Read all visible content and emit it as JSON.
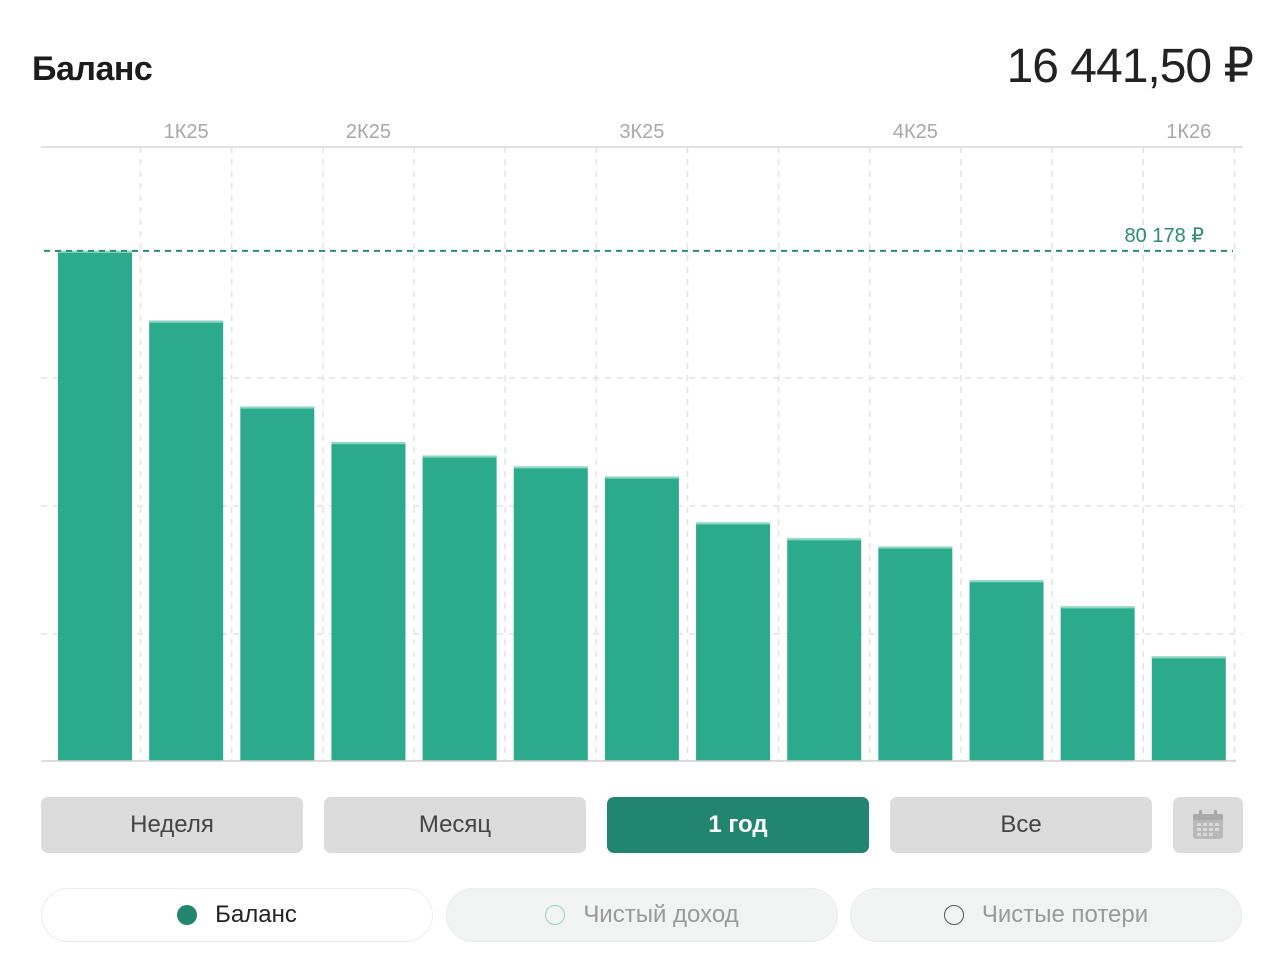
{
  "header": {
    "title": "Баланс",
    "total": "16 441,50 ₽"
  },
  "chart_data": {
    "type": "bar",
    "categories": [
      "",
      "",
      "",
      "",
      "",
      "",
      "",
      "",
      "",
      "",
      "",
      "",
      ""
    ],
    "values": [
      80178,
      69200,
      55700,
      50100,
      48000,
      46300,
      44700,
      37500,
      35000,
      33700,
      28400,
      24300,
      16441.5
    ],
    "x_tick_labels": [
      {
        "label": "1К25",
        "bar": 1
      },
      {
        "label": "2К25",
        "bar": 3
      },
      {
        "label": "3К25",
        "bar": 6
      },
      {
        "label": "4К25",
        "bar": 9
      },
      {
        "label": "1К26",
        "bar": 12
      }
    ],
    "ylim": [
      0,
      96500
    ],
    "reference_line": {
      "value": 80178,
      "label": "80 178 ₽"
    },
    "grid": true,
    "colors": {
      "bar": "#2bab8b",
      "bar_top": "#8fd6c3",
      "reference": "#2e8a72",
      "grid": "#e2e2e2",
      "tick": "#a8a8a8"
    }
  },
  "controls": {
    "periods": [
      {
        "label": "Неделя",
        "active": false
      },
      {
        "label": "Месяц",
        "active": false
      },
      {
        "label": "1 год",
        "active": true
      },
      {
        "label": "Все",
        "active": false
      }
    ],
    "calendar_icon": "calendar-icon"
  },
  "legend": [
    {
      "label": "Баланс",
      "active": true,
      "color": "#228570"
    },
    {
      "label": "Чистый доход",
      "active": false,
      "color": "#8fd6c3"
    },
    {
      "label": "Чистые потери",
      "active": false,
      "color": "#555555"
    }
  ]
}
